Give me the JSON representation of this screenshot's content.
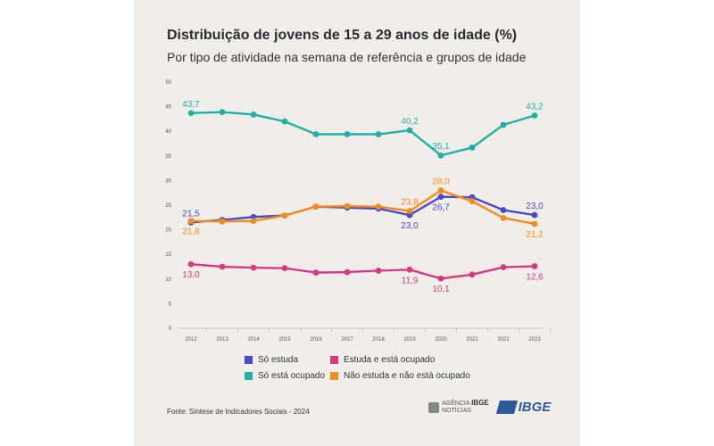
{
  "header": {
    "title": "Distribuição de jovens de 15 a 29 anos de idade (%)",
    "subtitle": "Por tipo de atividade na semana de referência e grupos de idade"
  },
  "footer": {
    "source": "Fonte: Síntese de Indicadores Sociais - 2024",
    "agencia_line1": "AGÊNCIA",
    "agencia_brand": "IBGE",
    "agencia_line2": "NOTÍCIAS",
    "ibge_logo": "IBGE"
  },
  "chart_data": {
    "type": "line",
    "title": "Distribuição de jovens de 15 a 29 anos de idade (%)",
    "subtitle": "Por tipo de atividade na semana de referência e grupos de idade",
    "x": [
      "2012",
      "2013",
      "2014",
      "2015",
      "2016",
      "2017",
      "2018",
      "2019",
      "2020",
      "2021",
      "2022",
      "2023"
    ],
    "yticks": [
      "0",
      "5",
      "10",
      "15",
      "20",
      "25",
      "30",
      "35",
      "40",
      "45",
      "50"
    ],
    "ylim": [
      0,
      50
    ],
    "grid": false,
    "legend_position": "bottom",
    "series": [
      {
        "name": "Só estuda",
        "color": "#4a4acb",
        "values": [
          21.5,
          22.0,
          22.6,
          22.9,
          24.7,
          24.5,
          24.3,
          23.0,
          26.7,
          26.6,
          24.0,
          23.0
        ],
        "labels": [
          {
            "index": 0,
            "text": "21,5",
            "pos": "above"
          },
          {
            "index": 7,
            "text": "23,0",
            "pos": "below"
          },
          {
            "index": 8,
            "text": "26,7",
            "pos": "below"
          },
          {
            "index": 11,
            "text": "23,0",
            "pos": "above"
          }
        ]
      },
      {
        "name": "Estuda e está ocupado",
        "color": "#d63a82",
        "values": [
          13.0,
          12.5,
          12.3,
          12.2,
          11.3,
          11.4,
          11.7,
          11.9,
          10.1,
          10.9,
          12.4,
          12.6
        ],
        "labels": [
          {
            "index": 0,
            "text": "13,0",
            "pos": "below"
          },
          {
            "index": 7,
            "text": "11,9",
            "pos": "below"
          },
          {
            "index": 8,
            "text": "10,1",
            "pos": "below"
          },
          {
            "index": 11,
            "text": "12,6",
            "pos": "below"
          }
        ]
      },
      {
        "name": "Só está ocupado",
        "color": "#1fb0aa",
        "values": [
          43.7,
          43.9,
          43.4,
          42.0,
          39.4,
          39.4,
          39.4,
          40.2,
          35.1,
          36.7,
          41.3,
          43.2
        ],
        "labels": [
          {
            "index": 0,
            "text": "43,7",
            "pos": "above"
          },
          {
            "index": 7,
            "text": "40,2",
            "pos": "above"
          },
          {
            "index": 8,
            "text": "35,1",
            "pos": "above"
          },
          {
            "index": 11,
            "text": "43,2",
            "pos": "above"
          }
        ]
      },
      {
        "name": "Não estuda e não está ocupado",
        "color": "#f28c1e",
        "values": [
          21.8,
          21.7,
          21.8,
          22.9,
          24.7,
          24.8,
          24.7,
          23.8,
          28.0,
          25.8,
          22.4,
          21.2
        ],
        "labels": [
          {
            "index": 0,
            "text": "21,8",
            "pos": "below"
          },
          {
            "index": 7,
            "text": "23,8",
            "pos": "above"
          },
          {
            "index": 8,
            "text": "28,0",
            "pos": "above"
          },
          {
            "index": 11,
            "text": "21,2",
            "pos": "below"
          }
        ]
      }
    ]
  }
}
